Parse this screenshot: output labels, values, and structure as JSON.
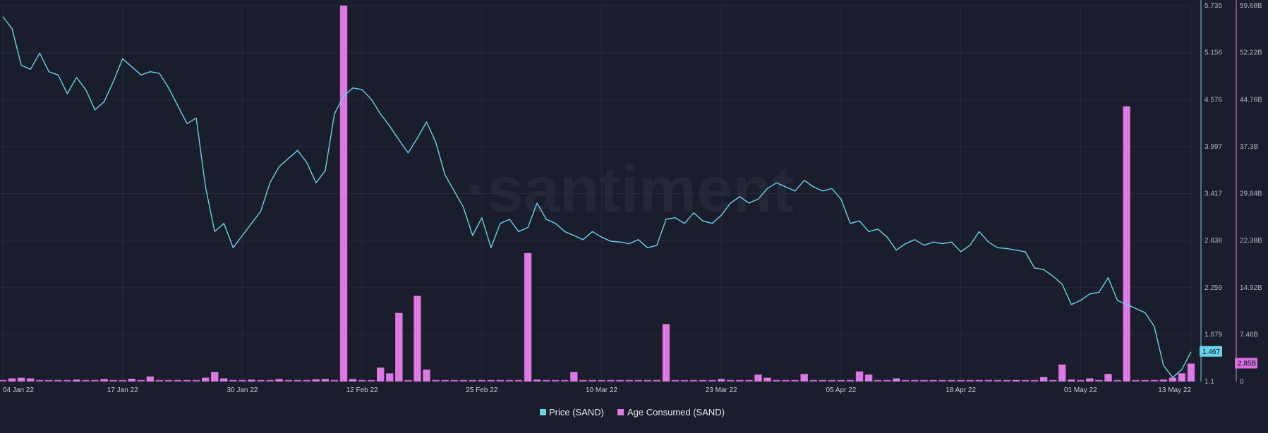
{
  "watermark": "·santiment",
  "colors": {
    "background": "#1a1d2b",
    "grid": "#262a3a",
    "price": "#68d2e8",
    "age": "#e07ee3",
    "age_fill": "#d76fe0",
    "tick_text": "#aeb2bf"
  },
  "chart_data": {
    "type": "bar+line",
    "title": "",
    "x_range": [
      "2022-01-04",
      "2022-05-13"
    ],
    "x_ticks": [
      {
        "date": "2022-01-04",
        "label": "04 Jan 22"
      },
      {
        "date": "2022-01-17",
        "label": "17 Jan 22"
      },
      {
        "date": "2022-01-30",
        "label": "30 Jan 22"
      },
      {
        "date": "2022-02-12",
        "label": "12 Feb 22"
      },
      {
        "date": "2022-02-25",
        "label": "25 Feb 22"
      },
      {
        "date": "2022-03-10",
        "label": "10 Mar 22"
      },
      {
        "date": "2022-03-23",
        "label": "23 Mar 22"
      },
      {
        "date": "2022-04-05",
        "label": "05 Apr 22"
      },
      {
        "date": "2022-04-18",
        "label": "18 Apr 22"
      },
      {
        "date": "2022-05-01",
        "label": "01 May 22"
      },
      {
        "date": "2022-05-13",
        "label": "13 May 22"
      }
    ],
    "price_axis": {
      "range": [
        1.1,
        5.735
      ],
      "ticks": [
        "5.735",
        "5.156",
        "4.576",
        "3.997",
        "3.417",
        "2.838",
        "2.259",
        "1.679",
        "1.1"
      ],
      "current_label": "1.467",
      "current_value": 1.467
    },
    "age_axis": {
      "range": [
        0,
        59.68
      ],
      "ticks": [
        "59.68B",
        "52.22B",
        "44.76B",
        "37.3B",
        "29.84B",
        "22.38B",
        "14.92B",
        "7.46B",
        "0"
      ],
      "current_label": "2.85B",
      "current_value": 2.85
    },
    "grid": true,
    "legend_position": "bottom-center",
    "series": [
      {
        "name": "Price (SAND)",
        "type": "line",
        "points": [
          [
            "2022-01-04",
            5.6
          ],
          [
            "2022-01-05",
            5.45
          ],
          [
            "2022-01-06",
            5.0
          ],
          [
            "2022-01-07",
            4.95
          ],
          [
            "2022-01-08",
            5.15
          ],
          [
            "2022-01-09",
            4.92
          ],
          [
            "2022-01-10",
            4.88
          ],
          [
            "2022-01-11",
            4.65
          ],
          [
            "2022-01-12",
            4.85
          ],
          [
            "2022-01-13",
            4.7
          ],
          [
            "2022-01-14",
            4.45
          ],
          [
            "2022-01-15",
            4.55
          ],
          [
            "2022-01-16",
            4.8
          ],
          [
            "2022-01-17",
            5.08
          ],
          [
            "2022-01-18",
            4.98
          ],
          [
            "2022-01-19",
            4.88
          ],
          [
            "2022-01-20",
            4.92
          ],
          [
            "2022-01-21",
            4.9
          ],
          [
            "2022-01-22",
            4.72
          ],
          [
            "2022-01-23",
            4.5
          ],
          [
            "2022-01-24",
            4.28
          ],
          [
            "2022-01-25",
            4.35
          ],
          [
            "2022-01-26",
            3.5
          ],
          [
            "2022-01-27",
            2.95
          ],
          [
            "2022-01-28",
            3.05
          ],
          [
            "2022-01-29",
            2.75
          ],
          [
            "2022-01-30",
            2.9
          ],
          [
            "2022-01-31",
            3.05
          ],
          [
            "2022-02-01",
            3.2
          ],
          [
            "2022-02-02",
            3.55
          ],
          [
            "2022-02-03",
            3.75
          ],
          [
            "2022-02-04",
            3.85
          ],
          [
            "2022-02-05",
            3.95
          ],
          [
            "2022-02-06",
            3.8
          ],
          [
            "2022-02-07",
            3.55
          ],
          [
            "2022-02-08",
            3.7
          ],
          [
            "2022-02-09",
            4.4
          ],
          [
            "2022-02-10",
            4.62
          ],
          [
            "2022-02-11",
            4.72
          ],
          [
            "2022-02-12",
            4.7
          ],
          [
            "2022-02-13",
            4.58
          ],
          [
            "2022-02-14",
            4.4
          ],
          [
            "2022-02-15",
            4.25
          ],
          [
            "2022-02-16",
            4.08
          ],
          [
            "2022-02-17",
            3.92
          ],
          [
            "2022-02-18",
            4.1
          ],
          [
            "2022-02-19",
            4.3
          ],
          [
            "2022-02-20",
            4.05
          ],
          [
            "2022-02-21",
            3.65
          ],
          [
            "2022-02-22",
            3.45
          ],
          [
            "2022-02-23",
            3.25
          ],
          [
            "2022-02-24",
            2.9
          ],
          [
            "2022-02-25",
            3.12
          ],
          [
            "2022-02-26",
            2.75
          ],
          [
            "2022-02-27",
            3.05
          ],
          [
            "2022-02-28",
            3.1
          ],
          [
            "2022-03-01",
            2.95
          ],
          [
            "2022-03-02",
            3.0
          ],
          [
            "2022-03-03",
            3.3
          ],
          [
            "2022-03-04",
            3.1
          ],
          [
            "2022-03-05",
            3.05
          ],
          [
            "2022-03-06",
            2.95
          ],
          [
            "2022-03-07",
            2.9
          ],
          [
            "2022-03-08",
            2.85
          ],
          [
            "2022-03-09",
            2.95
          ],
          [
            "2022-03-10",
            2.88
          ],
          [
            "2022-03-11",
            2.83
          ],
          [
            "2022-03-12",
            2.82
          ],
          [
            "2022-03-13",
            2.8
          ],
          [
            "2022-03-14",
            2.85
          ],
          [
            "2022-03-15",
            2.75
          ],
          [
            "2022-03-16",
            2.78
          ],
          [
            "2022-03-17",
            3.1
          ],
          [
            "2022-03-18",
            3.12
          ],
          [
            "2022-03-19",
            3.05
          ],
          [
            "2022-03-20",
            3.18
          ],
          [
            "2022-03-21",
            3.08
          ],
          [
            "2022-03-22",
            3.05
          ],
          [
            "2022-03-23",
            3.15
          ],
          [
            "2022-03-24",
            3.3
          ],
          [
            "2022-03-25",
            3.38
          ],
          [
            "2022-03-26",
            3.3
          ],
          [
            "2022-03-27",
            3.35
          ],
          [
            "2022-03-28",
            3.48
          ],
          [
            "2022-03-29",
            3.55
          ],
          [
            "2022-03-30",
            3.5
          ],
          [
            "2022-03-31",
            3.45
          ],
          [
            "2022-04-01",
            3.58
          ],
          [
            "2022-04-02",
            3.5
          ],
          [
            "2022-04-03",
            3.45
          ],
          [
            "2022-04-04",
            3.48
          ],
          [
            "2022-04-05",
            3.35
          ],
          [
            "2022-04-06",
            3.05
          ],
          [
            "2022-04-07",
            3.08
          ],
          [
            "2022-04-08",
            2.95
          ],
          [
            "2022-04-09",
            2.98
          ],
          [
            "2022-04-10",
            2.88
          ],
          [
            "2022-04-11",
            2.72
          ],
          [
            "2022-04-12",
            2.8
          ],
          [
            "2022-04-13",
            2.85
          ],
          [
            "2022-04-14",
            2.78
          ],
          [
            "2022-04-15",
            2.82
          ],
          [
            "2022-04-16",
            2.8
          ],
          [
            "2022-04-17",
            2.82
          ],
          [
            "2022-04-18",
            2.7
          ],
          [
            "2022-04-19",
            2.78
          ],
          [
            "2022-04-20",
            2.95
          ],
          [
            "2022-04-21",
            2.82
          ],
          [
            "2022-04-22",
            2.75
          ],
          [
            "2022-04-23",
            2.74
          ],
          [
            "2022-04-24",
            2.72
          ],
          [
            "2022-04-25",
            2.7
          ],
          [
            "2022-04-26",
            2.5
          ],
          [
            "2022-04-27",
            2.48
          ],
          [
            "2022-04-28",
            2.4
          ],
          [
            "2022-04-29",
            2.3
          ],
          [
            "2022-04-30",
            2.05
          ],
          [
            "2022-05-01",
            2.1
          ],
          [
            "2022-05-02",
            2.18
          ],
          [
            "2022-05-03",
            2.2
          ],
          [
            "2022-05-04",
            2.38
          ],
          [
            "2022-05-05",
            2.1
          ],
          [
            "2022-05-06",
            2.05
          ],
          [
            "2022-05-07",
            2.0
          ],
          [
            "2022-05-08",
            1.95
          ],
          [
            "2022-05-09",
            1.78
          ],
          [
            "2022-05-10",
            1.3
          ],
          [
            "2022-05-11",
            1.15
          ],
          [
            "2022-05-12",
            1.25
          ],
          [
            "2022-05-13",
            1.467
          ]
        ]
      },
      {
        "name": "Age Consumed (SAND)",
        "type": "bar",
        "unit": "B",
        "base": 0.25,
        "bars": [
          [
            "2022-01-05",
            0.5
          ],
          [
            "2022-01-06",
            0.6
          ],
          [
            "2022-01-07",
            0.5
          ],
          [
            "2022-01-12",
            0.3
          ],
          [
            "2022-01-15",
            0.4
          ],
          [
            "2022-01-18",
            0.45
          ],
          [
            "2022-01-20",
            0.8
          ],
          [
            "2022-01-26",
            0.6
          ],
          [
            "2022-01-27",
            1.5
          ],
          [
            "2022-01-28",
            0.5
          ],
          [
            "2022-01-31",
            0.3
          ],
          [
            "2022-02-03",
            0.4
          ],
          [
            "2022-02-07",
            0.35
          ],
          [
            "2022-02-08",
            0.4
          ],
          [
            "2022-02-10",
            59.7
          ],
          [
            "2022-02-11",
            0.4
          ],
          [
            "2022-02-14",
            2.2
          ],
          [
            "2022-02-15",
            1.3
          ],
          [
            "2022-02-16",
            10.9
          ],
          [
            "2022-02-18",
            13.6
          ],
          [
            "2022-02-19",
            1.9
          ],
          [
            "2022-03-02",
            20.4
          ],
          [
            "2022-03-03",
            0.3
          ],
          [
            "2022-03-07",
            1.5
          ],
          [
            "2022-03-17",
            9.1
          ],
          [
            "2022-03-23",
            0.4
          ],
          [
            "2022-03-27",
            1.1
          ],
          [
            "2022-03-28",
            0.6
          ],
          [
            "2022-04-01",
            1.2
          ],
          [
            "2022-04-07",
            1.6
          ],
          [
            "2022-04-08",
            1.1
          ],
          [
            "2022-04-11",
            0.5
          ],
          [
            "2022-04-24",
            0.2
          ],
          [
            "2022-04-27",
            0.7
          ],
          [
            "2022-04-29",
            2.7
          ],
          [
            "2022-04-30",
            0.3
          ],
          [
            "2022-05-02",
            0.5
          ],
          [
            "2022-05-04",
            1.2
          ],
          [
            "2022-05-06",
            43.7
          ],
          [
            "2022-05-10",
            0.3
          ],
          [
            "2022-05-11",
            0.6
          ],
          [
            "2022-05-12",
            1.3
          ],
          [
            "2022-05-13",
            2.85
          ]
        ]
      }
    ]
  },
  "legend": {
    "price_label": "Price (SAND)",
    "age_label": "Age Consumed (SAND)"
  }
}
